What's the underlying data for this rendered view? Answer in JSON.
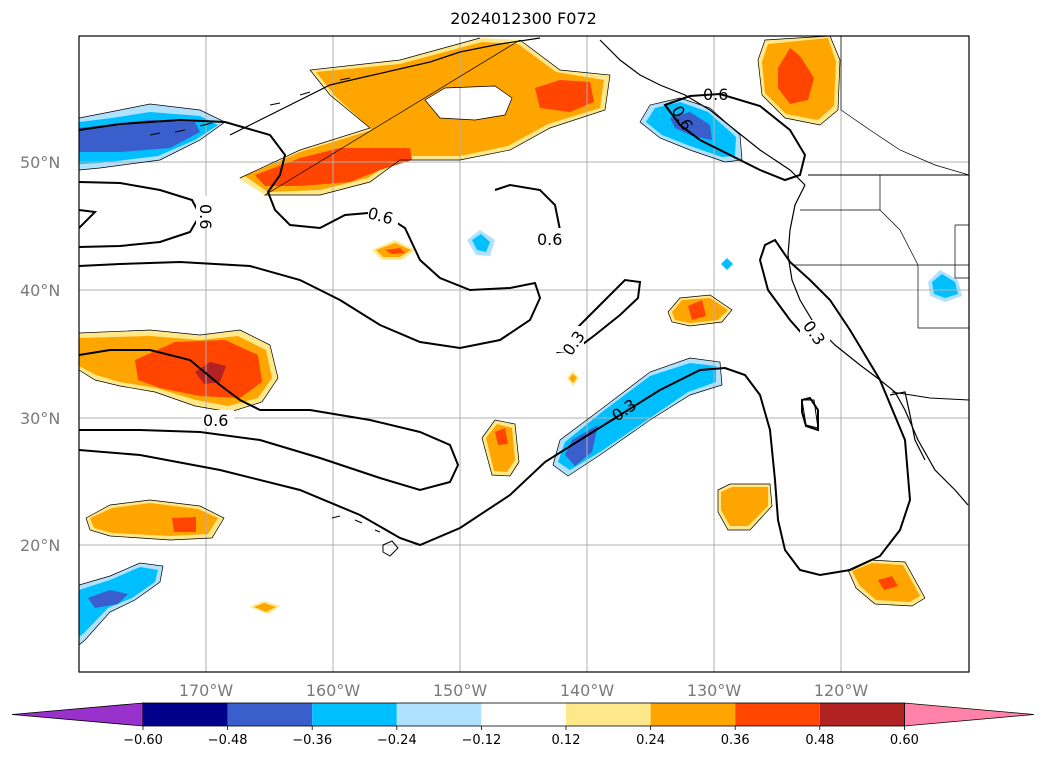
{
  "title": "2024012300 F072",
  "lat_labels": [
    "50°N",
    "40°N",
    "30°N",
    "20°N"
  ],
  "lon_labels": [
    "170°W",
    "160°W",
    "150°W",
    "140°W",
    "130°W",
    "120°W"
  ],
  "colorbar": {
    "ticks": [
      "−0.60",
      "−0.48",
      "−0.36",
      "−0.24",
      "−0.12",
      "0.12",
      "0.24",
      "0.36",
      "0.48",
      "0.60"
    ],
    "colors": [
      "#9932cc",
      "#00008b",
      "#3a5fcd",
      "#00bfff",
      "#b0e2ff",
      "#ffffff",
      "#ffe88a",
      "#ffa500",
      "#ff4500",
      "#b22222",
      "#ff82ab"
    ]
  },
  "contour_labels": [
    "0.6",
    "0.6",
    "0.6",
    "0.6",
    "0.6",
    "0.3",
    "0.3",
    "0.3",
    "0.6"
  ],
  "colors": {
    "orange": "#ffa500",
    "light_orange": "#ffe88a",
    "red_orange": "#ff4500",
    "dark_red": "#b22222",
    "deep_sky": "#00bfff",
    "light_blue": "#b0e2ff",
    "royal_blue": "#3a5fcd",
    "grid": "#b0b0b0"
  }
}
